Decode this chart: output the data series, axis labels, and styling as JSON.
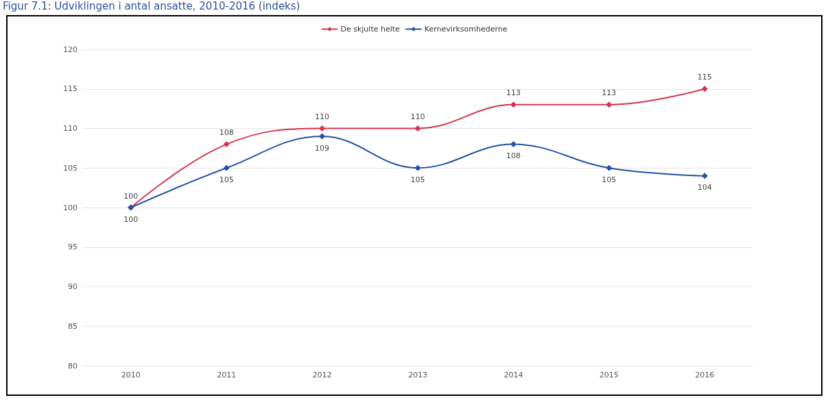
{
  "chart_data": {
    "type": "line",
    "title": "Figur 7.1: Udviklingen i antal ansatte, 2010-2016 (indeks)",
    "categories": [
      "2010",
      "2011",
      "2012",
      "2013",
      "2014",
      "2015",
      "2016"
    ],
    "series": [
      {
        "name": "De skjulte helte",
        "color": "#d6334f",
        "values": [
          100,
          108,
          110,
          110,
          113,
          113,
          115
        ]
      },
      {
        "name": "Kernevirksomhederne",
        "color": "#2350a8",
        "values": [
          100,
          105,
          109,
          105,
          108,
          105,
          104
        ]
      }
    ],
    "ylim": [
      80,
      120
    ],
    "yticks": [
      80,
      85,
      90,
      95,
      100,
      105,
      110,
      115,
      120
    ],
    "grid": "y",
    "legend": "top",
    "marker": "diamond",
    "line_style": "solid",
    "data_labels": true
  }
}
